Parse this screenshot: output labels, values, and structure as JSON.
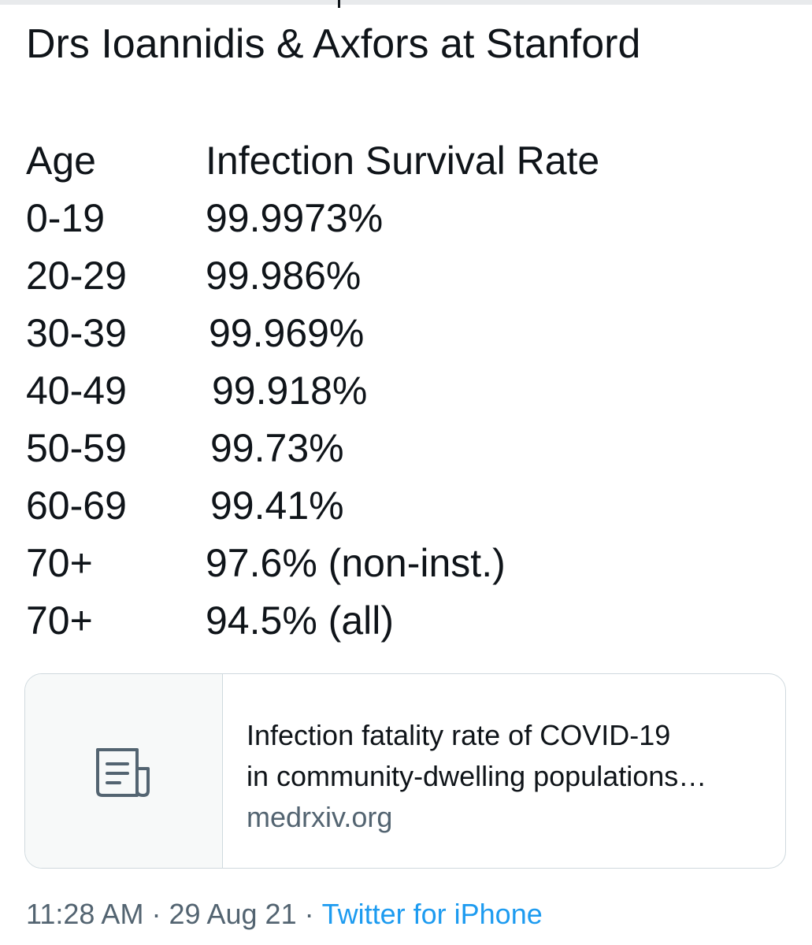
{
  "tweet": {
    "heading": "Drs Ioannidis & Axfors at Stanford"
  },
  "table": {
    "header": {
      "age": "Age",
      "rate": "Infection Survival Rate"
    },
    "rows": [
      {
        "age": "0-19",
        "rate": "99.9973%"
      },
      {
        "age": "20-29",
        "rate": "99.986%"
      },
      {
        "age": "30-39",
        "rate": "99.969%"
      },
      {
        "age": "40-49",
        "rate": "99.918%"
      },
      {
        "age": "50-59",
        "rate": "99.73%"
      },
      {
        "age": "60-69",
        "rate": "99.41%"
      },
      {
        "age": "70+",
        "rate": "97.6% (non-inst.)"
      },
      {
        "age": "70+",
        "rate": "94.5% (all)"
      }
    ]
  },
  "card": {
    "title_line1": "Infection fatality rate of COVID-19",
    "title_line2": "in community-dwelling populations…",
    "domain": "medrxiv.org",
    "icon": "article-icon"
  },
  "meta": {
    "time": "11:28 AM",
    "date": "29 Aug 21",
    "separator": "·",
    "source": "Twitter for iPhone"
  },
  "colors": {
    "text": "#0f1419",
    "secondary": "#536471",
    "link": "#1d9bf0",
    "border": "#cfd9de"
  }
}
